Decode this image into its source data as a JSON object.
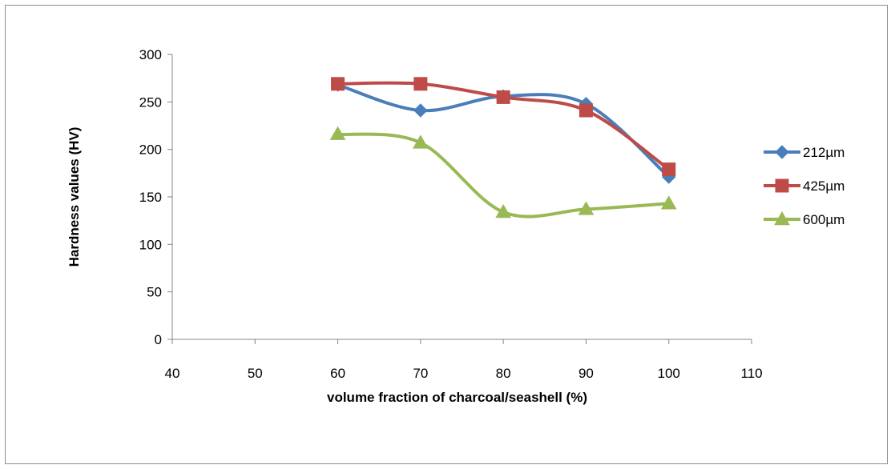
{
  "chart_data": {
    "type": "line",
    "title": "",
    "xlabel": "volume fraction of charcoal/seashell (%)",
    "ylabel": "Hardness values (HV)",
    "xlim": [
      40,
      110
    ],
    "ylim": [
      0,
      300
    ],
    "xticks": [
      "40",
      "50",
      "60",
      "70",
      "80",
      "90",
      "100",
      "110"
    ],
    "yticks": [
      "0",
      "50",
      "100",
      "150",
      "200",
      "250",
      "300"
    ],
    "grid": false,
    "legend_position": "right",
    "x": [
      60,
      70,
      80,
      90,
      100
    ],
    "series": [
      {
        "name": "212µm",
        "values": [
          268,
          241,
          256,
          248,
          171
        ],
        "color": "#4a7ebb",
        "marker": "diamond"
      },
      {
        "name": "425µm",
        "values": [
          269,
          269,
          255,
          241,
          179
        ],
        "color": "#be4b48",
        "marker": "square"
      },
      {
        "name": "600µm",
        "values": [
          216,
          207,
          134,
          137,
          143
        ],
        "color": "#98b954",
        "marker": "triangle"
      }
    ]
  }
}
